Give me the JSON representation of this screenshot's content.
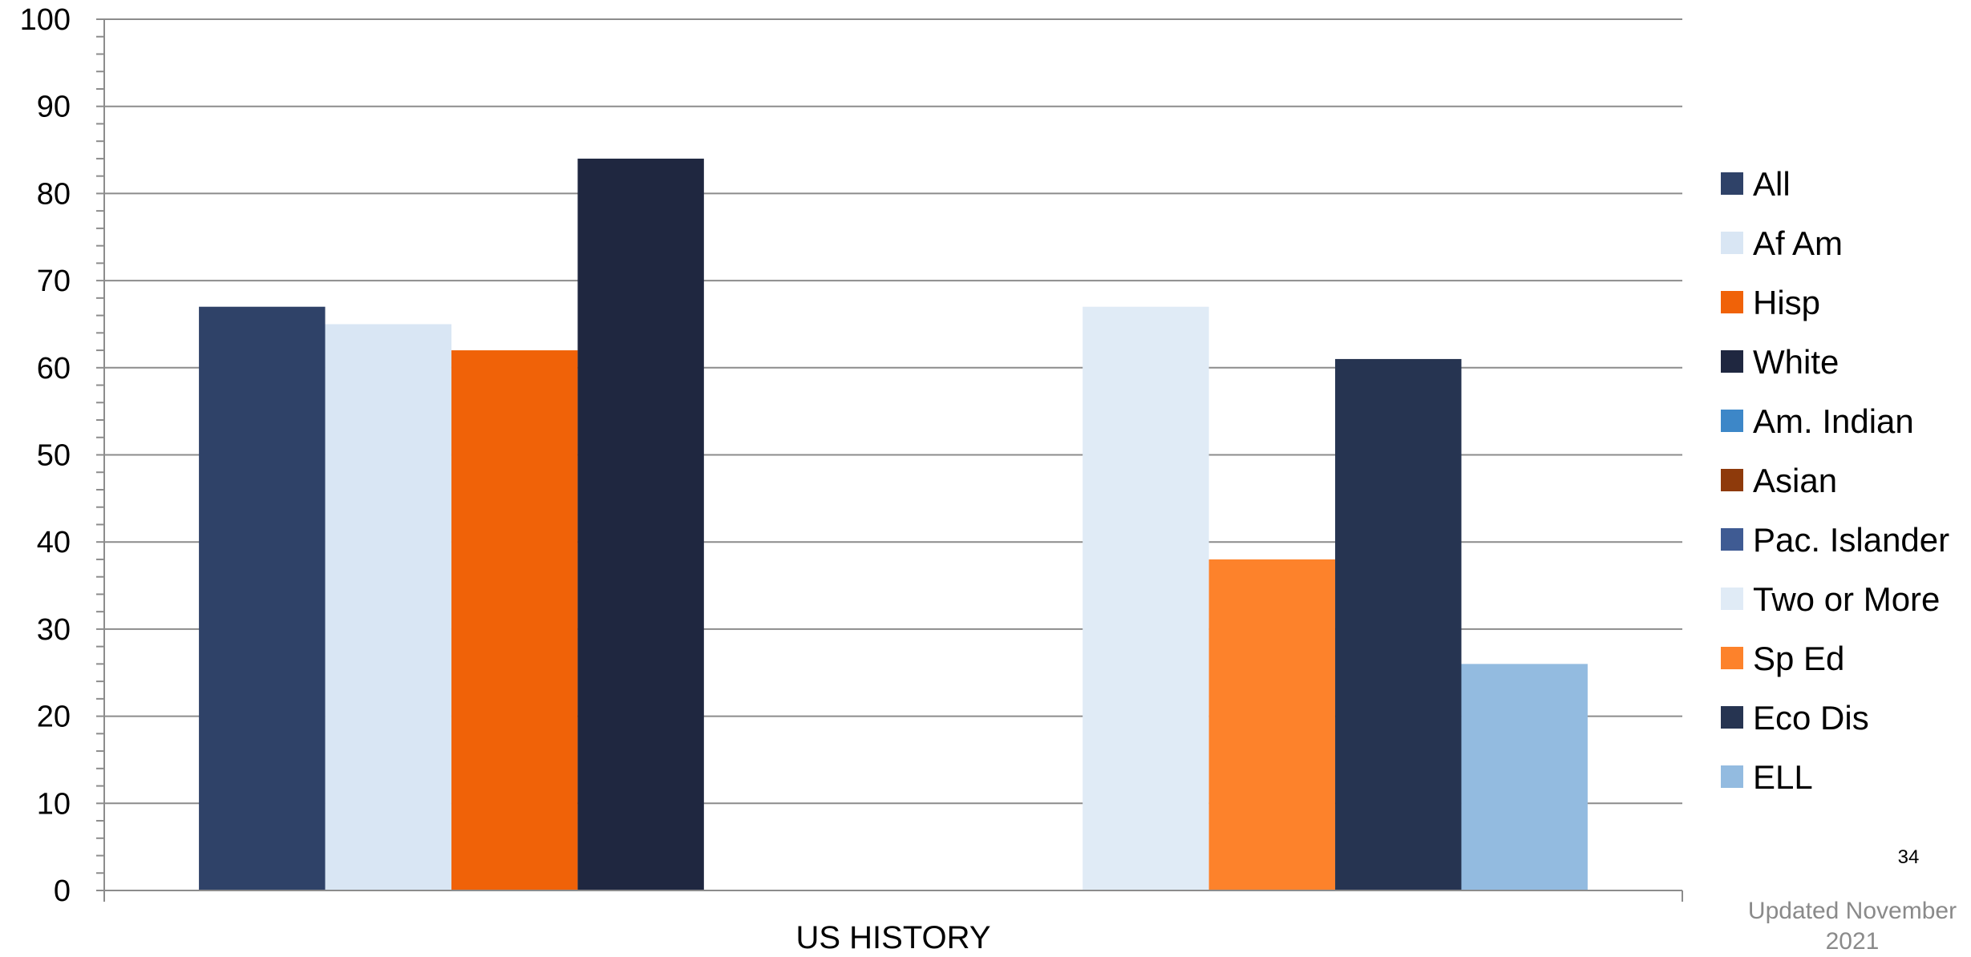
{
  "chart_data": {
    "type": "bar",
    "title": "",
    "xlabel": "",
    "ylabel": "",
    "ylim": [
      0,
      100
    ],
    "yticks": [
      0,
      10,
      20,
      30,
      40,
      50,
      60,
      70,
      80,
      90,
      100
    ],
    "grid": true,
    "legend_position": "right",
    "categories": [
      "US HISTORY"
    ],
    "bars": [
      {
        "name": "All",
        "value": 67,
        "color": "#2f4268"
      },
      {
        "name": "Af Am",
        "value": 65,
        "color": "#d9e6f4"
      },
      {
        "name": "Hisp",
        "value": 62,
        "color": "#f06208"
      },
      {
        "name": "White",
        "value": 84,
        "color": "#1f2740"
      },
      {
        "name": "Am. Indian",
        "value": null,
        "color": "#3d87c8"
      },
      {
        "name": "Asian",
        "value": null,
        "color": "#8e3a0b"
      },
      {
        "name": "Pac. Islander",
        "value": null,
        "color": "#3f5b93"
      },
      {
        "name": "Two or More",
        "value": 67,
        "color": "#e0ebf6"
      },
      {
        "name": "Sp Ed",
        "value": 38,
        "color": "#fd822b"
      },
      {
        "name": "Eco Dis",
        "value": 61,
        "color": "#263451"
      },
      {
        "name": "ELL",
        "value": 26,
        "color": "#93bbe0"
      }
    ]
  },
  "footer": {
    "page_number": "34",
    "updated_note": "Updated November 2021"
  }
}
